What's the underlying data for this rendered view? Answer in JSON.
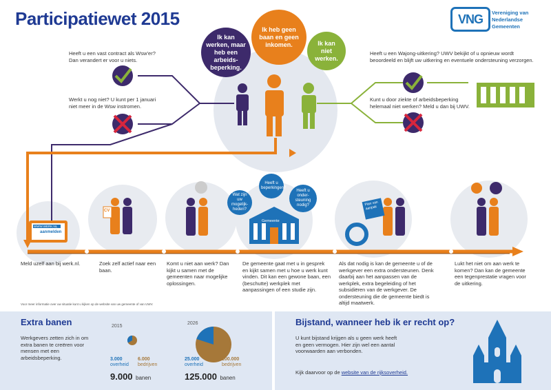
{
  "header": {
    "title": "Participatiewet 2015",
    "logo_text": "VNG",
    "logo_subtitle_line1": "Vereniging van",
    "logo_subtitle_line2": "Nederlandse Gemeenten"
  },
  "bubbles": {
    "purple": "Ik kan werken, maar heb een arbeids-beperking.",
    "orange": "Ik heb geen baan en geen inkomen.",
    "green": "Ik kan niet werken."
  },
  "left_branch": {
    "contract_text": "Heeft u een vast contract als Wsw’er? Dan verandert er voor u niets.",
    "not_working_text": "Werkt u nog niet? U kunt per 1 januari niet meer in de Wsw instromen."
  },
  "right_branch": {
    "wajong_text": "Heeft u een Wajong-uitkering? UWV bekijkt of u opnieuw wordt beoordeeld en blijft uw uitkering en eventuele ondersteuning verzorgen.",
    "illness_text": "Kunt u door ziekte of arbeidsbeperking helemaal niet werken? Meld u dan bij UWV."
  },
  "steps": {
    "step1": "Meld uzelf aan bij werk.nl.",
    "step2": "Zoek zelf actief naar een baan.",
    "step3": "Komt u niet aan werk? Dan kijkt u samen met de gemeenten naar mogelijke oplossingen.",
    "step4": "De gemeente gaat met u in gesprek en kijkt samen met u hoe u werk kunt vinden. Dit kan een gewone baan, een (beschutte) werkplek met aanpassingen of een studie zijn.",
    "step5": "Als dat nodig is kan de gemeente u of de werkgever een extra ondersteunen. Denk daarbij aan het aanpassen van de werkplek, extra begeleiding of het subsidiëren van de werkgever. De ondersteuning die de gemeente biedt is altijd maatwerk.",
    "step6": "Lukt het niet om aan werk te komen? Dan kan de gemeente een tegenprestatie vragen voor de uitkering."
  },
  "small_bubbles": {
    "b1": "Wat zijn uw mogelijk-heden?",
    "b2": "Heeft u beperkingen?",
    "b3": "Heeft u onder-steuning nodig?"
  },
  "labels": {
    "werknl_top": "WWW.WERK.NL",
    "werknl_btn": "aanmelden",
    "gemeente": "Gemeente",
    "plan": "Plan van aanpak",
    "cv": "CV"
  },
  "footnote": "Voor meer informatie over uw situatie kunt u kijken op de website van uw gemeente of van UWV.",
  "extra_banen": {
    "title": "Extra banen",
    "description": "Werkgevers zetten zich in om extra banen te creëren voor mensen met een arbeidsbeperking.",
    "year1": "2015",
    "year2": "2026",
    "y1_overheid_num": "3.000",
    "y1_overheid_label": "overheid",
    "y1_bedrijven_num": "6.000",
    "y1_bedrijven_label": "bedrijven",
    "y1_total": "9.000",
    "y2_overheid_num": "25.000",
    "y2_overheid_label": "overheid",
    "y2_bedrijven_num": "100.000",
    "y2_bedrijven_label": "bedrijven",
    "y2_total": "125.000",
    "unit": "banen",
    "colors": {
      "overheid": "#1e72b8",
      "bedrijven": "#a67839"
    }
  },
  "bijstand": {
    "title": "Bijstand, wanneer heb ik er recht op?",
    "text": "U kunt bijstand krijgen als u geen werk heeft en geen vermogen. Hier zijn wel een aantal voorwaarden aan verbonden.",
    "link_prefix": "Kijk daarvoor op de ",
    "link_text": "website van de rijksoverheid."
  },
  "colors": {
    "purple": "#3d2a6b",
    "orange": "#e8801c",
    "green": "#8ab23a",
    "blue": "#1e72b8",
    "title": "#1f3a93",
    "red": "#d7263d"
  }
}
